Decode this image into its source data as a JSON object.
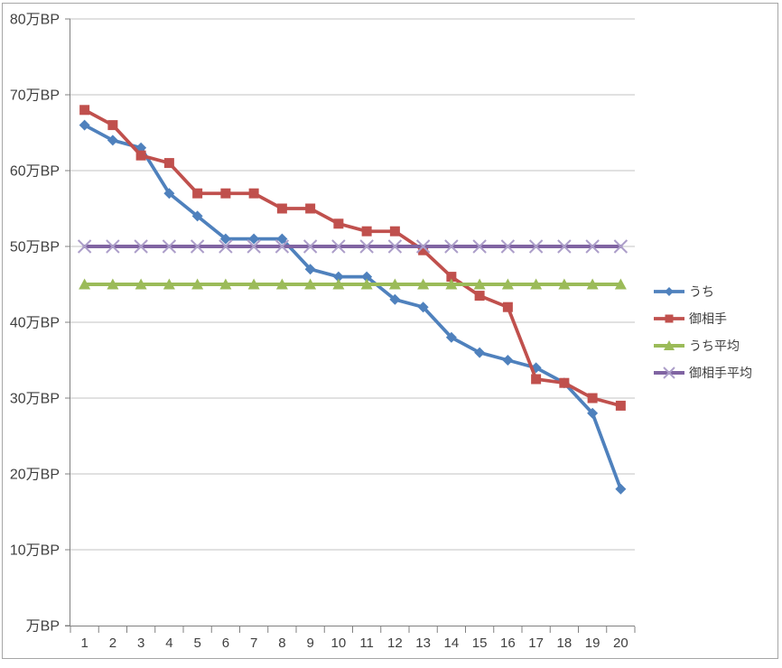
{
  "chart_data": {
    "type": "line",
    "title": "",
    "x_categories": [
      1,
      2,
      3,
      4,
      5,
      6,
      7,
      8,
      9,
      10,
      11,
      12,
      13,
      14,
      15,
      16,
      17,
      18,
      19,
      20
    ],
    "y_axis": {
      "unit": "万BP",
      "min": 0,
      "max": 80,
      "step": 10,
      "tick_labels": [
        {
          "value": 80,
          "label": "80万BP"
        },
        {
          "value": 70,
          "label": "70万BP"
        },
        {
          "value": 60,
          "label": "60万BP"
        },
        {
          "value": 50,
          "label": "50万BP"
        },
        {
          "value": 40,
          "label": "40万BP"
        },
        {
          "value": 30,
          "label": "30万BP"
        },
        {
          "value": 20,
          "label": "20万BP"
        },
        {
          "value": 10,
          "label": "10万BP"
        },
        {
          "value": 0,
          "label": "万BP"
        }
      ]
    },
    "series": [
      {
        "id": "ours",
        "name": "うち",
        "color": "#4F81BD",
        "marker": "diamond",
        "values": [
          66,
          64,
          63,
          57,
          54,
          51,
          51,
          51,
          47,
          46,
          46,
          43,
          42,
          38,
          36,
          35,
          34,
          32,
          28,
          18
        ]
      },
      {
        "id": "opponent",
        "name": "御相手",
        "color": "#C0504D",
        "marker": "square",
        "values": [
          68,
          66,
          62,
          61,
          57,
          57,
          57,
          55,
          55,
          53,
          52,
          52,
          49.5,
          46,
          43.5,
          42,
          32.5,
          32,
          30,
          29
        ]
      },
      {
        "id": "ours-average",
        "name": "うち平均",
        "color": "#9BBB59",
        "marker": "triangle",
        "values": [
          45,
          45,
          45,
          45,
          45,
          45,
          45,
          45,
          45,
          45,
          45,
          45,
          45,
          45,
          45,
          45,
          45,
          45,
          45,
          45
        ]
      },
      {
        "id": "opponent-average",
        "name": "御相手平均",
        "color": "#8064A2",
        "marker": "x",
        "marker_color": "#AC9EC9",
        "values": [
          50,
          50,
          50,
          50,
          50,
          50,
          50,
          50,
          50,
          50,
          50,
          50,
          50,
          50,
          50,
          50,
          50,
          50,
          50,
          50
        ]
      }
    ],
    "legend": {
      "position": "right"
    },
    "grid": true,
    "colors": {
      "gridline": "#C3C3C3",
      "axis": "#808080",
      "text": "#3F3F3F",
      "frame_border": "#A6A6A6",
      "background": "#FFFFFF"
    }
  }
}
